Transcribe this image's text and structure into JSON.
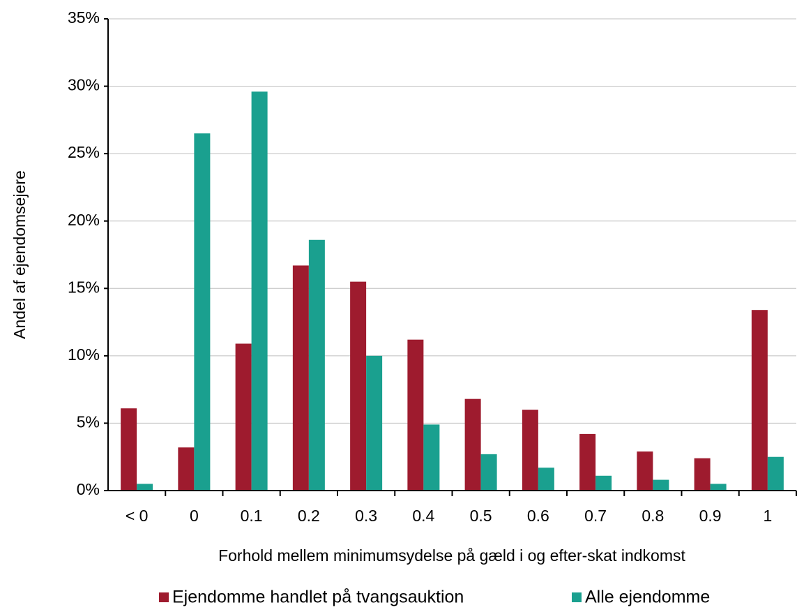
{
  "chart_data": {
    "type": "bar",
    "x_label": "Forhold mellem minimumsydelse på gæld i og efter-skat indkomst",
    "y_label": "Andel af ejendomsejere",
    "categories": [
      "< 0",
      "0",
      "0.1",
      "0.2",
      "0.3",
      "0.4",
      "0.5",
      "0.6",
      "0.7",
      "0.8",
      "0.9",
      "1"
    ],
    "series": [
      {
        "name": "Ejendomme handlet på tvangsauktion",
        "color": "#9e1b2e",
        "values": [
          6.1,
          3.2,
          10.9,
          16.7,
          15.5,
          11.2,
          6.8,
          6.0,
          4.2,
          2.9,
          2.4,
          13.4
        ]
      },
      {
        "name": "Alle ejendomme",
        "color": "#1aa08f",
        "values": [
          0.5,
          26.5,
          29.6,
          18.6,
          10.0,
          4.9,
          2.7,
          1.7,
          1.1,
          0.8,
          0.5,
          2.5
        ]
      }
    ],
    "ylim": [
      0,
      35
    ],
    "yticks": [
      {
        "value": 0,
        "label": "0%"
      },
      {
        "value": 5,
        "label": "5%"
      },
      {
        "value": 10,
        "label": "10%"
      },
      {
        "value": 15,
        "label": "15%"
      },
      {
        "value": 20,
        "label": "20%"
      },
      {
        "value": 25,
        "label": "25%"
      },
      {
        "value": 30,
        "label": "30%"
      },
      {
        "value": 35,
        "label": "35%"
      }
    ],
    "grid": true,
    "legend": "bottom"
  }
}
